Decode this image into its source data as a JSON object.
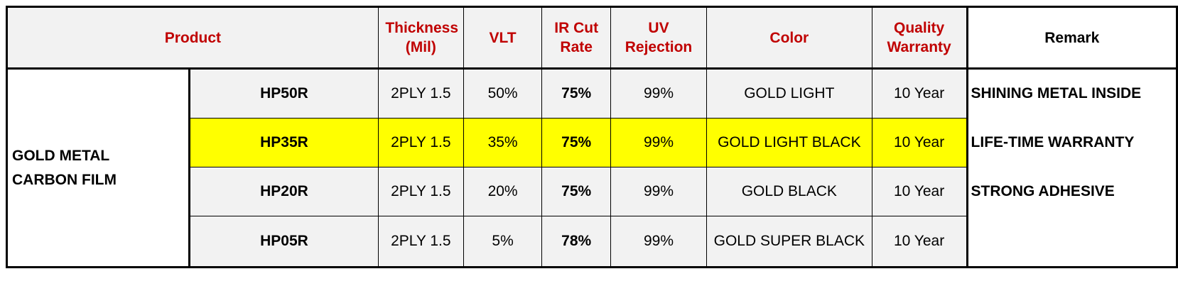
{
  "headers": {
    "product": "Product",
    "thickness": "Thickness (Mil)",
    "vlt": "VLT",
    "ir_cut": "IR Cut Rate",
    "uv": "UV Rejection",
    "color": "Color",
    "warranty": "Quality Warranty",
    "remark": "Remark"
  },
  "group": "GOLD METAL CARBON FILM",
  "rows": [
    {
      "model": "HP50R",
      "thickness": "2PLY 1.5",
      "vlt": "50%",
      "ir": "75%",
      "uv": "99%",
      "color": "GOLD LIGHT",
      "warranty": "10 Year",
      "remark": "SHINING METAL INSIDE",
      "highlighted": false
    },
    {
      "model": "HP35R",
      "thickness": "2PLY 1.5",
      "vlt": "35%",
      "ir": "75%",
      "uv": "99%",
      "color": "GOLD LIGHT BLACK",
      "warranty": "10 Year",
      "remark": "LIFE-TIME WARRANTY",
      "highlighted": true
    },
    {
      "model": "HP20R",
      "thickness": "2PLY 1.5",
      "vlt": "20%",
      "ir": "75%",
      "uv": "99%",
      "color": "GOLD BLACK",
      "warranty": "10 Year",
      "remark": "STRONG ADHESIVE",
      "highlighted": false
    },
    {
      "model": "HP05R",
      "thickness": "2PLY 1.5",
      "vlt": "5%",
      "ir": "78%",
      "uv": "99%",
      "color": "GOLD SUPER BLACK",
      "warranty": "10 Year",
      "remark": "",
      "highlighted": false
    }
  ],
  "colors": {
    "header_text": "#c00000",
    "highlight": "#ffff00",
    "group_text": "#ff0000",
    "remark_text": "#ff0000",
    "ir_text": "#843c0c",
    "model_text": "#1f2a44",
    "cell_bg": "#f2f2f2"
  }
}
